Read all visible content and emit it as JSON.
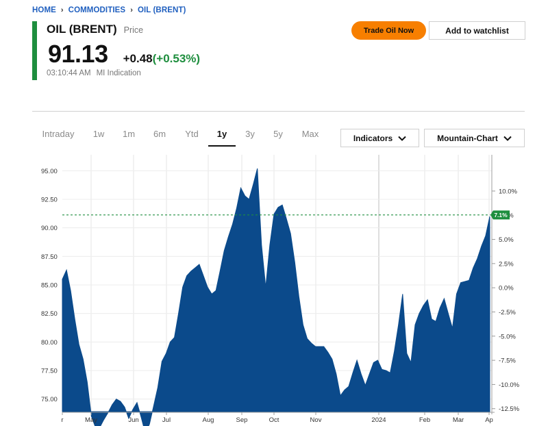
{
  "breadcrumb": {
    "home": "HOME",
    "commodities": "COMMODITIES",
    "current": "OIL (BRENT)"
  },
  "header": {
    "title": "OIL (BRENT)",
    "subtitle": "Price",
    "price": "91.13",
    "change": "+0.48",
    "change_pct": "(+0.53%)",
    "time": "03:10:44 AM",
    "source": "MI Indication"
  },
  "actions": {
    "trade_label": "Trade Oil Now",
    "watchlist_label": "Add to watchlist"
  },
  "tabs": [
    "Intraday",
    "1w",
    "1m",
    "6m",
    "Ytd",
    "1y",
    "3y",
    "5y",
    "Max"
  ],
  "active_tab": "1y",
  "dropdowns": {
    "indicators": "Indicators",
    "chart_type": "Mountain-Chart"
  },
  "colors": {
    "accent_green": "#1e8e3e",
    "trade_orange": "#f77f00",
    "area_fill": "#0b4a8b",
    "dashed_line": "#1e8e3e"
  },
  "chart_data": {
    "type": "area",
    "x_tick_labels": [
      "r",
      "May",
      "Jun",
      "Jul",
      "Aug",
      "Sep",
      "Oct",
      "Nov",
      "2024",
      "Feb",
      "Mar",
      "Ap"
    ],
    "y_left_ticks": [
      "95.00",
      "92.50",
      "90.00",
      "87.50",
      "85.00",
      "82.50",
      "80.00",
      "77.50",
      "75.00"
    ],
    "y_right_ticks": [
      "10.0%",
      "7.5%",
      "5.0%",
      "2.5%",
      "0.0%",
      "-2.5%",
      "-5.0%",
      "-7.5%",
      "-10.0%",
      "-12.5%"
    ],
    "ylim": [
      73.9,
      96.4
    ],
    "current_value": 91.13,
    "current_label": "7.1%",
    "series": [
      {
        "values": [
          85.5,
          86.3,
          84.5,
          82.0,
          79.8,
          78.5,
          76.5,
          73.5,
          72.5,
          72.5,
          73.2,
          73.8,
          74.5,
          75.0,
          74.8,
          74.3,
          73.3,
          74.1,
          74.7,
          73.4,
          72.0,
          72.8,
          74.4,
          76.0,
          78.3,
          79.0,
          80.0,
          80.4,
          82.5,
          84.8,
          85.8,
          86.2,
          86.5,
          86.8,
          85.8,
          84.8,
          84.2,
          84.5,
          86.2,
          88.0,
          89.2,
          90.3,
          91.7,
          93.5,
          92.8,
          92.5,
          93.8,
          95.2,
          88.5,
          84.8,
          88.5,
          91.2,
          91.8,
          92.0,
          90.8,
          89.5,
          87.0,
          84.0,
          81.5,
          80.3,
          79.9,
          79.6,
          79.6,
          79.6,
          79.1,
          78.5,
          77.2,
          75.3,
          75.8,
          76.1,
          77.3,
          78.4,
          77.2,
          76.2,
          77.2,
          78.2,
          78.4,
          77.6,
          77.5,
          77.3,
          79.2,
          81.5,
          84.2,
          79.0,
          78.2,
          81.5,
          82.5,
          83.2,
          83.7,
          82.0,
          81.8,
          83.0,
          83.8,
          82.5,
          81.2,
          84.2,
          85.2,
          85.3,
          85.4,
          86.5,
          87.3,
          88.4,
          89.3,
          91.0
        ]
      }
    ],
    "grid": true
  }
}
